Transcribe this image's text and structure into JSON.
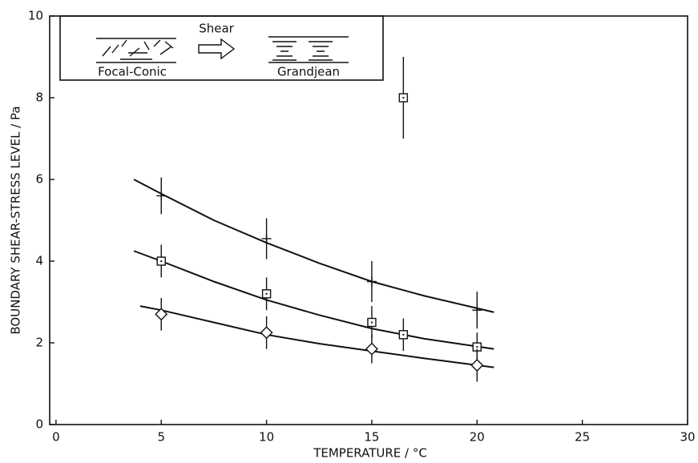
{
  "chart_data": {
    "type": "scatter",
    "xlabel": "TEMPERATURE / °C",
    "ylabel": "BOUNDARY SHEAR-STRESS LEVEL / Pa",
    "annotations": [
      "Shear",
      "Focal-Conic",
      "Grandjean"
    ],
    "xlim": [
      -0.3,
      30
    ],
    "ylim": [
      0,
      10
    ],
    "xticks": [
      0,
      5,
      10,
      15,
      20,
      25,
      30
    ],
    "yticks": [
      0,
      2,
      4,
      6,
      8,
      10
    ],
    "color": "#111111",
    "series": [
      {
        "marker": "plus",
        "x": [
          5,
          10,
          15,
          20
        ],
        "values": [
          5.6,
          4.55,
          3.5,
          2.8
        ],
        "errors": [
          0.45,
          0.5,
          0.5,
          0.45
        ],
        "fit": {
          "x": [
            3.7,
            5,
            7.5,
            10,
            12.5,
            15,
            17.5,
            20.8
          ],
          "values": [
            6.0,
            5.65,
            5.0,
            4.45,
            3.95,
            3.5,
            3.15,
            2.75
          ]
        }
      },
      {
        "marker": "square",
        "x": [
          5,
          10,
          15,
          16.5,
          20
        ],
        "values": [
          4.0,
          3.2,
          2.5,
          2.2,
          1.9
        ],
        "errors": [
          0.4,
          0.4,
          0.4,
          0.4,
          0.35
        ],
        "fit": {
          "x": [
            3.7,
            5,
            7.5,
            10,
            12.5,
            15,
            17.5,
            20.8
          ],
          "values": [
            4.25,
            4.0,
            3.5,
            3.05,
            2.68,
            2.35,
            2.1,
            1.85
          ]
        }
      },
      {
        "marker": "diamond",
        "x": [
          5,
          10,
          15,
          20
        ],
        "values": [
          2.7,
          2.25,
          1.85,
          1.45
        ],
        "errors": [
          0.4,
          0.4,
          0.35,
          0.4
        ],
        "fit": {
          "x": [
            4,
            5,
            7.5,
            10,
            12.5,
            15,
            17.5,
            20.8
          ],
          "values": [
            2.9,
            2.8,
            2.5,
            2.2,
            1.98,
            1.8,
            1.62,
            1.4
          ]
        }
      },
      {
        "marker": "square",
        "x": [
          16.5
        ],
        "values": [
          8.0
        ],
        "errors": [
          1.0
        ]
      }
    ]
  }
}
